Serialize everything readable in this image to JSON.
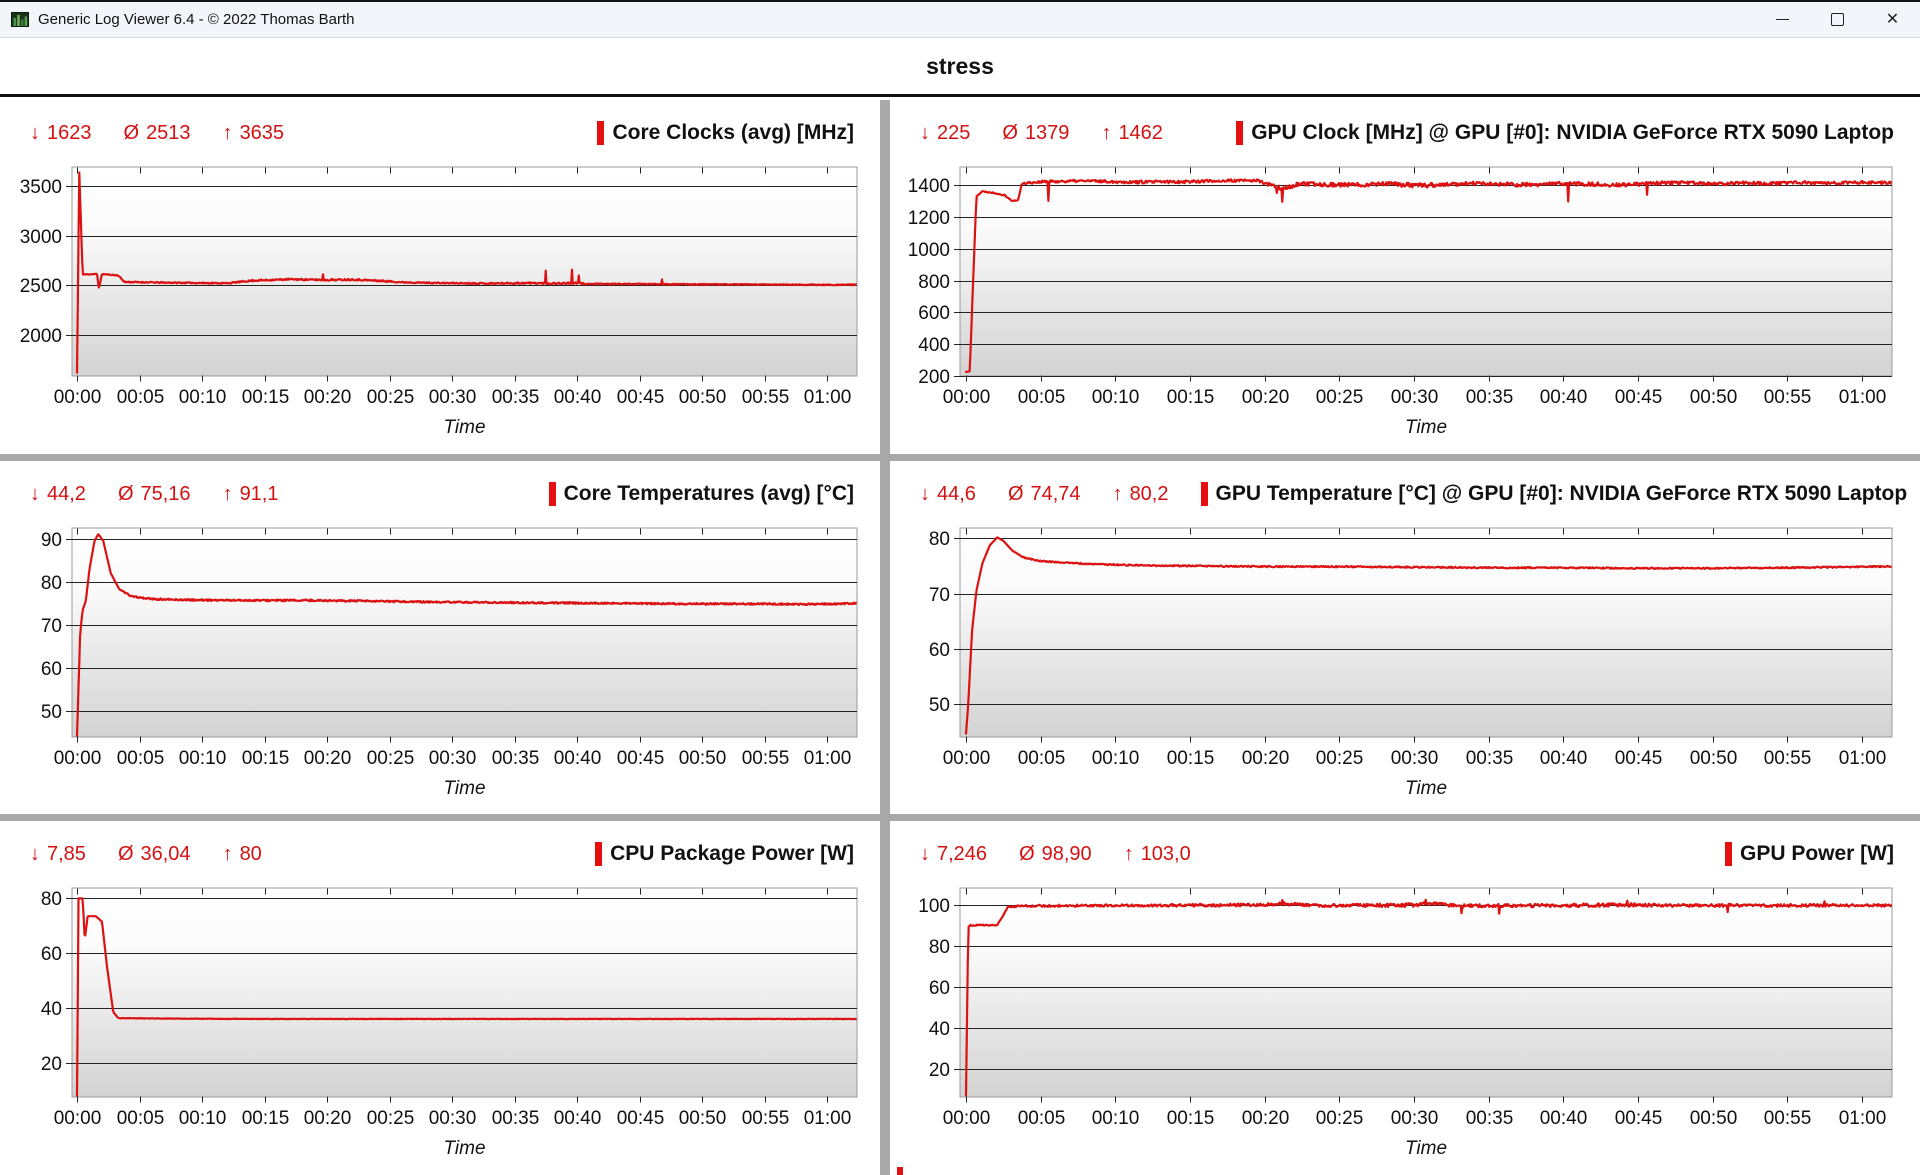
{
  "window": {
    "title": "Generic Log Viewer 6.4 - © 2022 Thomas Barth"
  },
  "header": {
    "title": "stress"
  },
  "icons": {
    "min_arrow": "↓",
    "avg_symbol": "Ø",
    "max_arrow": "↑",
    "close": "✕"
  },
  "colors": {
    "trace_red": "#dc1212",
    "stats_red": "#d31111",
    "title_marker_red": "#e60f0f",
    "grid_line": "#232323",
    "plot_border": "#9a9a9a",
    "plot_gradient_top": "#ffffff",
    "plot_gradient_bottom": "#d3d3d3",
    "divider_gray": "#a9a9a9",
    "titlebar_bg": "#f2f5fa"
  },
  "x_axis": {
    "label": "Time",
    "ticks": [
      "00:00",
      "00:05",
      "00:10",
      "00:15",
      "00:20",
      "00:25",
      "00:30",
      "00:35",
      "00:40",
      "00:45",
      "00:50",
      "00:55",
      "01:00"
    ],
    "tick_minutes": [
      0,
      5,
      10,
      15,
      20,
      25,
      30,
      35,
      40,
      45,
      50,
      55,
      60
    ]
  },
  "chart_data": [
    {
      "type": "line",
      "title": "Core Clocks (avg) [MHz]",
      "stats": {
        "min": "1623",
        "avg": "2513",
        "max": "3635"
      },
      "x_range_minutes": [
        -0.4,
        62.4
      ],
      "y": {
        "ticks": [
          2000,
          2500,
          3000,
          3500
        ],
        "range": [
          1590,
          3690
        ]
      },
      "series": {
        "name": "Core Clocks (avg)",
        "color": "#dc1212",
        "seed": 11,
        "keypoints": [
          [
            0,
            1623,
            0
          ],
          [
            0.18,
            3635,
            0
          ],
          [
            0.45,
            2610,
            4
          ],
          [
            1.6,
            2615,
            4
          ],
          [
            1.75,
            2470,
            0
          ],
          [
            2.0,
            2615,
            4
          ],
          [
            3.3,
            2600,
            5
          ],
          [
            3.8,
            2535,
            6
          ],
          [
            7,
            2528,
            6
          ],
          [
            12,
            2522,
            6
          ],
          [
            14,
            2548,
            7
          ],
          [
            17,
            2562,
            7
          ],
          [
            20,
            2555,
            8
          ],
          [
            22,
            2560,
            8
          ],
          [
            24,
            2548,
            8
          ],
          [
            26,
            2532,
            6
          ],
          [
            29,
            2524,
            6
          ],
          [
            33,
            2520,
            7
          ],
          [
            36,
            2524,
            9
          ],
          [
            38,
            2520,
            9
          ],
          [
            40,
            2522,
            10
          ],
          [
            41,
            2514,
            6
          ],
          [
            44,
            2515,
            5
          ],
          [
            48,
            2512,
            5
          ],
          [
            52,
            2510,
            5
          ],
          [
            56,
            2508,
            5
          ],
          [
            60,
            2506,
            5
          ],
          [
            63,
            2508,
            5
          ]
        ],
        "spikes": [
          [
            19.7,
            2612
          ],
          [
            37.5,
            2648
          ],
          [
            39.6,
            2658
          ],
          [
            40.15,
            2600
          ],
          [
            46.8,
            2560
          ]
        ]
      }
    },
    {
      "type": "line",
      "title": "GPU Clock [MHz] @ GPU [#0]: NVIDIA GeForce RTX 5090 Laptop",
      "stats": {
        "min": "225",
        "avg": "1379",
        "max": "1462"
      },
      "x_range_minutes": [
        -0.4,
        62.0
      ],
      "y": {
        "ticks": [
          200,
          400,
          600,
          800,
          1000,
          1200,
          1400
        ],
        "range": [
          200,
          1515
        ]
      },
      "series": {
        "name": "GPU Clock",
        "color": "#dc1212",
        "seed": 22,
        "keypoints": [
          [
            0,
            225,
            0
          ],
          [
            0.25,
            230,
            0
          ],
          [
            0.7,
            1330,
            0
          ],
          [
            1.1,
            1362,
            3
          ],
          [
            1.9,
            1352,
            4
          ],
          [
            2.6,
            1338,
            4
          ],
          [
            3.1,
            1300,
            3
          ],
          [
            3.5,
            1308,
            3
          ],
          [
            3.75,
            1412,
            6
          ],
          [
            5,
            1422,
            8
          ],
          [
            8,
            1428,
            8
          ],
          [
            11,
            1420,
            9
          ],
          [
            14,
            1422,
            10
          ],
          [
            17,
            1428,
            9
          ],
          [
            19.5,
            1430,
            8
          ],
          [
            20.4,
            1400,
            12
          ],
          [
            21.3,
            1380,
            14
          ],
          [
            22.3,
            1408,
            13
          ],
          [
            24,
            1405,
            13
          ],
          [
            26,
            1402,
            15
          ],
          [
            28,
            1412,
            13
          ],
          [
            30,
            1398,
            15
          ],
          [
            32,
            1404,
            13
          ],
          [
            34,
            1412,
            11
          ],
          [
            36,
            1406,
            13
          ],
          [
            38,
            1402,
            13
          ],
          [
            40,
            1412,
            11
          ],
          [
            42,
            1406,
            13
          ],
          [
            44,
            1402,
            12
          ],
          [
            46,
            1412,
            11
          ],
          [
            48,
            1416,
            11
          ],
          [
            50,
            1408,
            11
          ],
          [
            52,
            1416,
            10
          ],
          [
            54,
            1412,
            11
          ],
          [
            56,
            1416,
            11
          ],
          [
            58,
            1412,
            10
          ],
          [
            60,
            1420,
            9
          ],
          [
            62,
            1418,
            9
          ],
          [
            63,
            1420,
            8
          ]
        ],
        "spikes": [
          [
            5.5,
            1302
          ],
          [
            20.8,
            1352
          ],
          [
            21.15,
            1296
          ],
          [
            40.3,
            1298
          ],
          [
            45.6,
            1340
          ]
        ]
      }
    },
    {
      "type": "line",
      "title": "Core Temperatures (avg) [°C]",
      "stats": {
        "min": "44,2",
        "avg": "75,16",
        "max": "91,1"
      },
      "x_range_minutes": [
        -0.4,
        62.4
      ],
      "y": {
        "ticks": [
          50,
          60,
          70,
          80,
          90
        ],
        "range": [
          44,
          92.5
        ]
      },
      "series": {
        "name": "Core Temperatures (avg)",
        "color": "#dc1212",
        "seed": 33,
        "keypoints": [
          [
            0,
            44.2,
            0
          ],
          [
            0.25,
            68,
            0
          ],
          [
            0.45,
            73.5,
            0
          ],
          [
            0.7,
            75.5,
            0
          ],
          [
            1.0,
            83,
            0
          ],
          [
            1.4,
            89.5,
            0
          ],
          [
            1.7,
            91.1,
            0
          ],
          [
            2.1,
            89.5,
            0
          ],
          [
            2.7,
            82,
            0
          ],
          [
            3.4,
            78.2,
            0.1
          ],
          [
            4.4,
            76.6,
            0.15
          ],
          [
            6,
            76.0,
            0.18
          ],
          [
            9,
            75.8,
            0.18
          ],
          [
            14,
            75.7,
            0.2
          ],
          [
            19,
            75.7,
            0.2
          ],
          [
            24,
            75.5,
            0.2
          ],
          [
            29,
            75.3,
            0.18
          ],
          [
            34,
            75.2,
            0.18
          ],
          [
            39,
            75.1,
            0.2
          ],
          [
            44,
            75.0,
            0.18
          ],
          [
            49,
            74.9,
            0.18
          ],
          [
            54,
            74.9,
            0.18
          ],
          [
            58,
            74.8,
            0.18
          ],
          [
            61,
            74.9,
            0.18
          ],
          [
            63,
            75.1,
            0.18
          ]
        ],
        "spikes": []
      }
    },
    {
      "type": "line",
      "title": "GPU Temperature [°C] @ GPU [#0]: NVIDIA GeForce RTX 5090 Laptop",
      "stats": {
        "min": "44,6",
        "avg": "74,74",
        "max": "80,2"
      },
      "x_range_minutes": [
        -0.4,
        62.0
      ],
      "y": {
        "ticks": [
          50,
          60,
          70,
          80
        ],
        "range": [
          44,
          81.9
        ]
      },
      "series": {
        "name": "GPU Temperature",
        "color": "#dc1212",
        "seed": 44,
        "keypoints": [
          [
            0,
            44.6,
            0
          ],
          [
            0.15,
            50,
            0
          ],
          [
            0.4,
            63,
            0
          ],
          [
            0.7,
            70.5,
            0
          ],
          [
            1.1,
            75.5,
            0
          ],
          [
            1.6,
            78.8,
            0
          ],
          [
            2.1,
            80.2,
            0
          ],
          [
            2.5,
            79.6,
            0
          ],
          [
            3.1,
            77.8,
            0
          ],
          [
            3.9,
            76.5,
            0.12
          ],
          [
            5,
            75.9,
            0.12
          ],
          [
            8,
            75.4,
            0.12
          ],
          [
            12,
            75.1,
            0.12
          ],
          [
            16,
            75.0,
            0.12
          ],
          [
            20,
            74.9,
            0.12
          ],
          [
            25,
            74.9,
            0.12
          ],
          [
            30,
            74.8,
            0.12
          ],
          [
            35,
            74.7,
            0.12
          ],
          [
            40,
            74.7,
            0.12
          ],
          [
            45,
            74.6,
            0.12
          ],
          [
            50,
            74.6,
            0.12
          ],
          [
            55,
            74.7,
            0.12
          ],
          [
            58,
            74.8,
            0.12
          ],
          [
            61,
            74.9,
            0.12
          ],
          [
            63,
            75.0,
            0.12
          ]
        ],
        "spikes": []
      }
    },
    {
      "type": "line",
      "title": "CPU Package Power [W]",
      "stats": {
        "min": "7,85",
        "avg": "36,04",
        "max": "80"
      },
      "x_range_minutes": [
        -0.4,
        62.4
      ],
      "y": {
        "ticks": [
          20,
          40,
          60,
          80
        ],
        "range": [
          7.5,
          83.8
        ]
      },
      "series": {
        "name": "CPU Package Power",
        "color": "#dc1212",
        "seed": 55,
        "keypoints": [
          [
            0,
            7.85,
            0
          ],
          [
            0.12,
            80,
            0
          ],
          [
            0.45,
            80,
            0
          ],
          [
            0.62,
            65,
            0
          ],
          [
            0.85,
            73.5,
            0
          ],
          [
            1.5,
            73.5,
            0
          ],
          [
            2.0,
            71.5,
            0
          ],
          [
            2.4,
            55,
            0
          ],
          [
            2.9,
            38.5,
            0
          ],
          [
            3.3,
            36.3,
            0.08
          ],
          [
            8,
            36.1,
            0.08
          ],
          [
            15,
            36.0,
            0.08
          ],
          [
            25,
            36.0,
            0.08
          ],
          [
            35,
            36.0,
            0.08
          ],
          [
            45,
            36.0,
            0.08
          ],
          [
            55,
            36.0,
            0.08
          ],
          [
            63,
            36.0,
            0.08
          ]
        ],
        "spikes": []
      }
    },
    {
      "type": "line",
      "title": "GPU Power [W]",
      "stats": {
        "min": "7,246",
        "avg": "98,90",
        "max": "103,0"
      },
      "x_range_minutes": [
        -0.4,
        62.0
      ],
      "y": {
        "ticks": [
          20,
          40,
          60,
          80,
          100
        ],
        "range": [
          6.5,
          108.5
        ]
      },
      "series": {
        "name": "GPU Power",
        "color": "#dc1212",
        "seed": 66,
        "keypoints": [
          [
            0,
            7.25,
            0
          ],
          [
            0.15,
            89.5,
            0
          ],
          [
            0.3,
            90.3,
            0.3
          ],
          [
            2.1,
            90.5,
            0.3
          ],
          [
            2.45,
            94.5,
            0
          ],
          [
            2.8,
            99.3,
            0.4
          ],
          [
            4,
            99.8,
            0.5
          ],
          [
            8,
            99.9,
            0.5
          ],
          [
            12,
            100.0,
            0.6
          ],
          [
            16,
            100.1,
            0.7
          ],
          [
            20,
            100.3,
            0.7
          ],
          [
            21,
            100.8,
            0.8
          ],
          [
            24,
            100.0,
            0.7
          ],
          [
            28,
            100.0,
            0.8
          ],
          [
            30,
            100.2,
            0.9
          ],
          [
            31,
            101.0,
            0.8
          ],
          [
            33,
            99.8,
            0.8
          ],
          [
            36,
            99.9,
            0.8
          ],
          [
            40,
            100.0,
            0.8
          ],
          [
            44,
            100.3,
            0.9
          ],
          [
            48,
            100.0,
            0.7
          ],
          [
            52,
            100.0,
            0.7
          ],
          [
            56,
            100.0,
            0.7
          ],
          [
            60,
            100.0,
            0.6
          ],
          [
            63,
            100.0,
            0.6
          ]
        ],
        "spikes": [
          [
            21.2,
            102.6
          ],
          [
            30.8,
            102.8
          ],
          [
            33.2,
            96.2
          ],
          [
            35.7,
            96.0
          ],
          [
            44.3,
            102.3
          ],
          [
            51.0,
            96.8
          ],
          [
            57.5,
            102.0
          ]
        ]
      }
    }
  ]
}
